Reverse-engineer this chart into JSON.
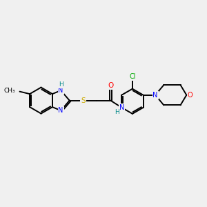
{
  "bg_color": "#f0f0f0",
  "bond_color": "#000000",
  "bond_width": 1.4,
  "atom_colors": {
    "C": "#000000",
    "N": "#0000ff",
    "O": "#ff0000",
    "S": "#ccaa00",
    "Cl": "#00aa00",
    "H": "#008888"
  },
  "font_size": 7.0
}
